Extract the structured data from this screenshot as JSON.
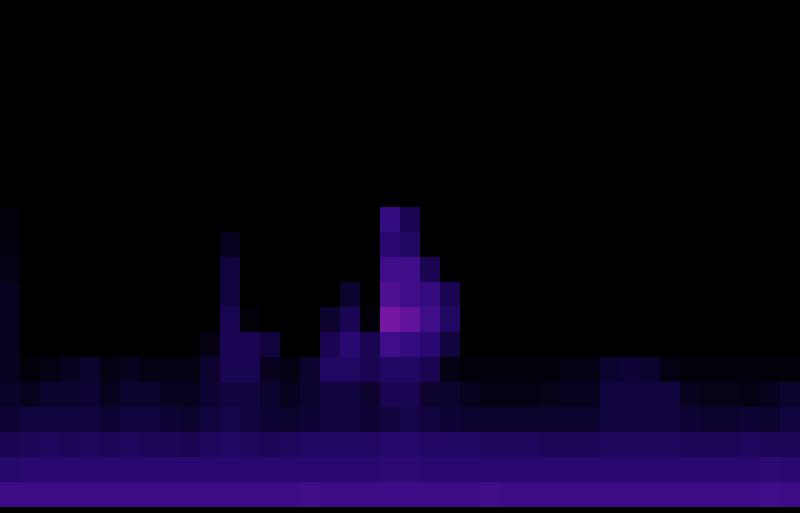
{
  "chart_data": {
    "type": "heatmap",
    "tick_labels": false,
    "zlim": [
      0,
      1
    ],
    "cells": [
      [
        0,
        0,
        0,
        0,
        0,
        0,
        0,
        0,
        0,
        0,
        0,
        0,
        0,
        0,
        0,
        0,
        0,
        0,
        0,
        0,
        0,
        0,
        0,
        0,
        0,
        0,
        0,
        0,
        0,
        0,
        0,
        0,
        0,
        0,
        0,
        0,
        0,
        0,
        0,
        0
      ],
      [
        0,
        0,
        0,
        0,
        0,
        0,
        0,
        0,
        0,
        0,
        0,
        0,
        0,
        0,
        0,
        0,
        0,
        0,
        0,
        0,
        0,
        0,
        0,
        0,
        0,
        0,
        0,
        0,
        0,
        0,
        0,
        0,
        0,
        0,
        0,
        0,
        0,
        0,
        0,
        0
      ],
      [
        0,
        0,
        0,
        0,
        0,
        0,
        0,
        0,
        0,
        0,
        0,
        0,
        0,
        0,
        0,
        0,
        0,
        0,
        0,
        0,
        0,
        0,
        0,
        0,
        0,
        0,
        0,
        0,
        0,
        0,
        0,
        0,
        0,
        0,
        0,
        0,
        0,
        0,
        0,
        0
      ],
      [
        0,
        0,
        0,
        0,
        0,
        0,
        0,
        0,
        0,
        0,
        0,
        0,
        0,
        0,
        0,
        0,
        0,
        0,
        0,
        0,
        0,
        0,
        0,
        0,
        0,
        0,
        0,
        0,
        0,
        0,
        0,
        0,
        0,
        0,
        0,
        0,
        0,
        0,
        0,
        0
      ],
      [
        0,
        0,
        0,
        0,
        0,
        0,
        0,
        0,
        0,
        0,
        0,
        0,
        0,
        0,
        0,
        0,
        0,
        0,
        0,
        0,
        0,
        0,
        0,
        0,
        0,
        0,
        0,
        0,
        0,
        0,
        0,
        0,
        0,
        0,
        0,
        0,
        0,
        0,
        0,
        0
      ],
      [
        0,
        0,
        0,
        0,
        0,
        0,
        0,
        0,
        0,
        0,
        0,
        0,
        0,
        0,
        0,
        0,
        0,
        0,
        0,
        0,
        0,
        0,
        0,
        0,
        0,
        0,
        0,
        0,
        0,
        0,
        0,
        0,
        0,
        0,
        0,
        0,
        0,
        0,
        0,
        0
      ],
      [
        0,
        0,
        0,
        0,
        0,
        0,
        0,
        0,
        0,
        0,
        0,
        0,
        0,
        0,
        0,
        0,
        0,
        0,
        0,
        0,
        0,
        0,
        0,
        0,
        0,
        0,
        0,
        0,
        0,
        0,
        0,
        0,
        0,
        0,
        0,
        0,
        0,
        0,
        0,
        0
      ],
      [
        0,
        0,
        0,
        0,
        0,
        0,
        0,
        0,
        0,
        0,
        0,
        0,
        0,
        0,
        0,
        0,
        0,
        0,
        0,
        0,
        0,
        0,
        0,
        0,
        0,
        0,
        0,
        0,
        0,
        0,
        0,
        0,
        0,
        0,
        0,
        0,
        0,
        0,
        0,
        0
      ],
      [
        0.05,
        0,
        0,
        0,
        0,
        0,
        0,
        0,
        0,
        0,
        0,
        0,
        0,
        0,
        0,
        0,
        0,
        0,
        0,
        0.45,
        0.3,
        0,
        0,
        0,
        0,
        0,
        0,
        0,
        0,
        0,
        0,
        0,
        0,
        0,
        0,
        0,
        0,
        0,
        0,
        0
      ],
      [
        0.08,
        0,
        0,
        0,
        0,
        0,
        0,
        0,
        0,
        0,
        0,
        0.15,
        0,
        0,
        0,
        0,
        0,
        0,
        0,
        0.4,
        0.35,
        0,
        0,
        0,
        0,
        0,
        0,
        0,
        0,
        0,
        0,
        0,
        0,
        0,
        0,
        0,
        0,
        0,
        0,
        0
      ],
      [
        0.1,
        0,
        0,
        0,
        0,
        0,
        0,
        0,
        0,
        0,
        0,
        0.25,
        0,
        0,
        0,
        0,
        0,
        0,
        0,
        0.5,
        0.5,
        0.3,
        0,
        0,
        0,
        0,
        0,
        0,
        0,
        0,
        0,
        0,
        0,
        0,
        0,
        0,
        0,
        0,
        0,
        0
      ],
      [
        0.15,
        0,
        0,
        0,
        0,
        0,
        0,
        0,
        0,
        0,
        0,
        0.25,
        0,
        0,
        0,
        0,
        0,
        0.2,
        0,
        0.55,
        0.5,
        0.45,
        0.3,
        0,
        0,
        0,
        0,
        0,
        0,
        0,
        0,
        0,
        0,
        0,
        0,
        0,
        0,
        0,
        0,
        0
      ],
      [
        0.15,
        0,
        0,
        0,
        0,
        0,
        0,
        0,
        0,
        0,
        0,
        0.3,
        0.05,
        0,
        0,
        0,
        0.2,
        0.3,
        0.05,
        0.65,
        0.6,
        0.5,
        0.35,
        0,
        0,
        0,
        0,
        0,
        0,
        0,
        0,
        0,
        0,
        0,
        0,
        0,
        0,
        0,
        0,
        0
      ],
      [
        0.15,
        0,
        0,
        0,
        0,
        0,
        0,
        0,
        0,
        0,
        0.1,
        0.3,
        0.3,
        0.25,
        0,
        0,
        0.3,
        0.4,
        0.3,
        0.5,
        0.45,
        0.4,
        0.25,
        0,
        0,
        0,
        0,
        0,
        0,
        0,
        0,
        0,
        0,
        0,
        0,
        0,
        0,
        0,
        0,
        0
      ],
      [
        0.15,
        0.05,
        0.1,
        0.15,
        0.2,
        0.1,
        0.15,
        0.1,
        0.1,
        0.1,
        0.2,
        0.3,
        0.3,
        0.15,
        0.1,
        0.2,
        0.35,
        0.35,
        0.3,
        0.35,
        0.35,
        0.3,
        0.1,
        0.05,
        0.05,
        0.05,
        0.05,
        0.05,
        0.1,
        0.1,
        0.2,
        0.22,
        0.2,
        0.1,
        0.05,
        0.05,
        0.05,
        0.05,
        0.05,
        0.05
      ],
      [
        0.18,
        0.15,
        0.2,
        0.2,
        0.22,
        0.15,
        0.2,
        0.2,
        0.15,
        0.15,
        0.22,
        0.25,
        0.25,
        0.2,
        0.15,
        0.2,
        0.25,
        0.25,
        0.2,
        0.3,
        0.3,
        0.2,
        0.2,
        0.15,
        0.1,
        0.1,
        0.1,
        0.12,
        0.15,
        0.15,
        0.25,
        0.25,
        0.25,
        0.25,
        0.15,
        0.12,
        0.12,
        0.1,
        0.15,
        0.2
      ],
      [
        0.22,
        0.25,
        0.25,
        0.25,
        0.25,
        0.22,
        0.25,
        0.25,
        0.22,
        0.2,
        0.25,
        0.28,
        0.25,
        0.22,
        0.2,
        0.22,
        0.25,
        0.25,
        0.22,
        0.25,
        0.28,
        0.25,
        0.22,
        0.2,
        0.2,
        0.2,
        0.2,
        0.2,
        0.2,
        0.2,
        0.25,
        0.25,
        0.25,
        0.25,
        0.22,
        0.2,
        0.2,
        0.22,
        0.2,
        0.25
      ],
      [
        0.3,
        0.32,
        0.33,
        0.32,
        0.33,
        0.32,
        0.33,
        0.32,
        0.32,
        0.3,
        0.33,
        0.35,
        0.33,
        0.32,
        0.33,
        0.35,
        0.35,
        0.35,
        0.35,
        0.38,
        0.38,
        0.36,
        0.35,
        0.35,
        0.33,
        0.33,
        0.33,
        0.32,
        0.32,
        0.32,
        0.33,
        0.33,
        0.33,
        0.33,
        0.32,
        0.32,
        0.32,
        0.33,
        0.32,
        0.32
      ],
      [
        0.38,
        0.4,
        0.4,
        0.4,
        0.4,
        0.4,
        0.4,
        0.4,
        0.4,
        0.4,
        0.4,
        0.4,
        0.4,
        0.4,
        0.4,
        0.4,
        0.4,
        0.4,
        0.4,
        0.42,
        0.42,
        0.4,
        0.4,
        0.4,
        0.4,
        0.4,
        0.4,
        0.4,
        0.4,
        0.4,
        0.4,
        0.4,
        0.4,
        0.4,
        0.4,
        0.4,
        0.4,
        0.4,
        0.42,
        0.4
      ],
      [
        0.48,
        0.48,
        0.48,
        0.48,
        0.48,
        0.48,
        0.48,
        0.48,
        0.48,
        0.48,
        0.48,
        0.48,
        0.48,
        0.48,
        0.48,
        0.5,
        0.48,
        0.48,
        0.48,
        0.48,
        0.48,
        0.48,
        0.48,
        0.48,
        0.5,
        0.48,
        0.48,
        0.48,
        0.48,
        0.48,
        0.48,
        0.48,
        0.48,
        0.48,
        0.48,
        0.48,
        0.48,
        0.48,
        0.5,
        0.48
      ]
    ]
  }
}
